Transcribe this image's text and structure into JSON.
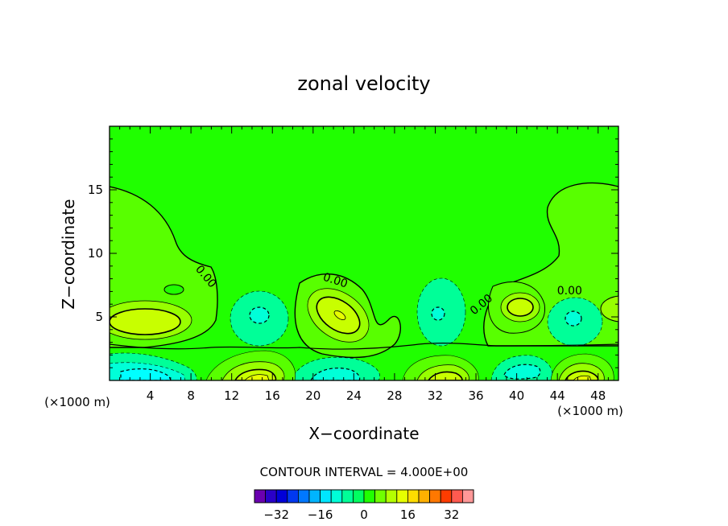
{
  "chart_data": {
    "type": "heatmap",
    "title": "zonal velocity",
    "xlabel": "X−coordinate",
    "ylabel": "Z−coordinate",
    "x_unit_left": "(×1000 m)",
    "x_unit_right": "(×1000 m)",
    "xlim": [
      0,
      50
    ],
    "ylim": [
      0,
      20
    ],
    "x_ticks": [
      4,
      8,
      12,
      16,
      20,
      24,
      28,
      32,
      36,
      40,
      44,
      48
    ],
    "y_ticks": [
      5,
      10,
      15
    ],
    "contour_interval_label": "CONTOUR INTERVAL = 4.000E+00",
    "contour_interval": 4.0,
    "contour_labels": [
      {
        "text": "0.00",
        "x": 9.5,
        "y": 8.2
      },
      {
        "text": "0.00",
        "x": 22.2,
        "y": 7.9
      },
      {
        "text": "0.00",
        "x": 36.5,
        "y": 6.0
      },
      {
        "text": "0.00",
        "x": 45.2,
        "y": 7.1
      }
    ],
    "colorbar": {
      "levels": [
        -40,
        -36,
        -32,
        -28,
        -24,
        -20,
        -16,
        -12,
        -8,
        -4,
        0,
        4,
        8,
        12,
        16,
        20,
        24,
        28,
        32,
        36,
        40
      ],
      "tick_labels": [
        "−32",
        "−16",
        "0",
        "16",
        "32"
      ],
      "tick_values": [
        -32,
        -16,
        0,
        16,
        32
      ],
      "colors": [
        "#6a00b0",
        "#2a00c8",
        "#0000d8",
        "#0038f0",
        "#0078ff",
        "#00b4ff",
        "#00e6ff",
        "#00ffd8",
        "#00ff98",
        "#00ff60",
        "#20ff00",
        "#70ff00",
        "#b4ff00",
        "#e6ff00",
        "#ffdc00",
        "#ffb000",
        "#ff7800",
        "#ff3c00",
        "#ff5a50",
        "#ff9898"
      ]
    },
    "features": [
      {
        "sign": "positive",
        "x": 4.5,
        "y": 4.8,
        "peak": 12
      },
      {
        "sign": "positive",
        "x": 22.5,
        "y": 5.3,
        "peak": 12
      },
      {
        "sign": "positive",
        "x": 40,
        "y": 5.8,
        "peak": 12
      },
      {
        "sign": "positive",
        "x": 15,
        "y": 0.6,
        "peak": 16
      },
      {
        "sign": "positive",
        "x": 33,
        "y": 0.4,
        "peak": 16
      },
      {
        "sign": "positive",
        "x": 46,
        "y": 0.5,
        "peak": 16
      },
      {
        "sign": "negative",
        "x": 3.5,
        "y": 0.6,
        "peak": -12
      },
      {
        "sign": "negative",
        "x": 25,
        "y": 0.7,
        "peak": -8
      },
      {
        "sign": "negative",
        "x": 41,
        "y": 0.9,
        "peak": -8
      },
      {
        "sign": "negative",
        "x": 14.5,
        "y": 4.8,
        "peak": -8
      },
      {
        "sign": "negative",
        "x": 32.5,
        "y": 5.0,
        "peak": -8
      },
      {
        "sign": "negative",
        "x": 46.5,
        "y": 4.7,
        "peak": -8
      }
    ]
  }
}
